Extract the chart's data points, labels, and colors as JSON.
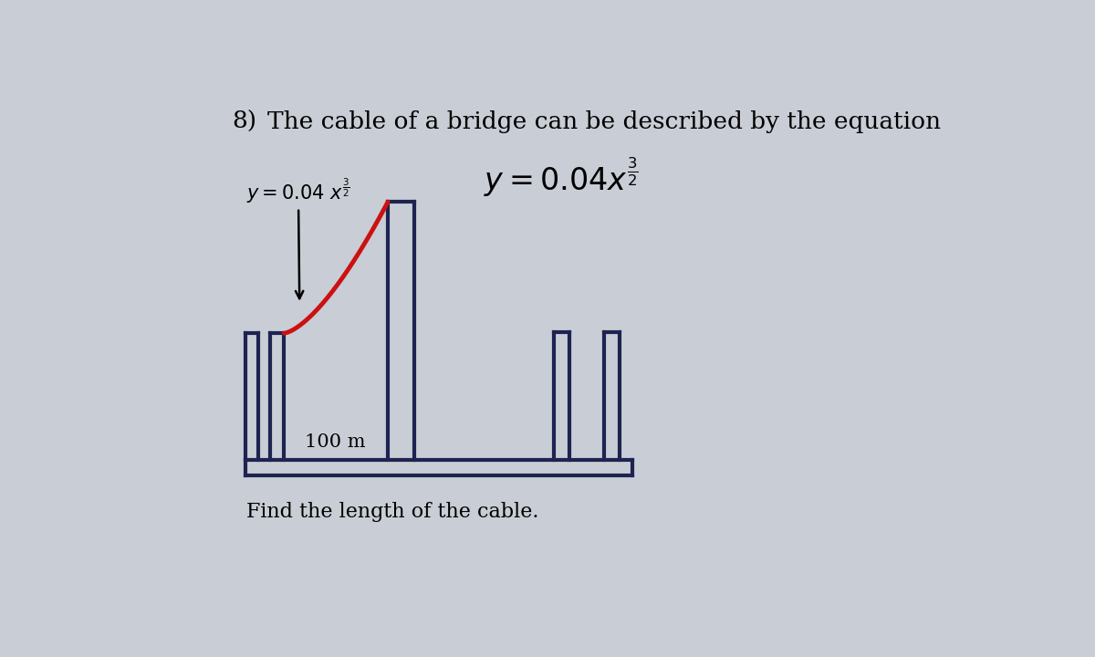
{
  "bg_color": "#c9cdd5",
  "title_number": "8)",
  "title_text": "The cable of a bridge can be described by the equation",
  "label_100m": "100 m",
  "find_text": "Find the length of the cable.",
  "cable_color": "#cc1111",
  "structure_color": "#1e2352",
  "cable_lw": 3.5,
  "structure_lw": 3.0,
  "fig_w": 12.0,
  "fig_h": 7.2,
  "title_fontsize": 19,
  "eq_fontsize": 24,
  "ann_fontsize": 15,
  "label_fontsize": 15,
  "find_fontsize": 16
}
